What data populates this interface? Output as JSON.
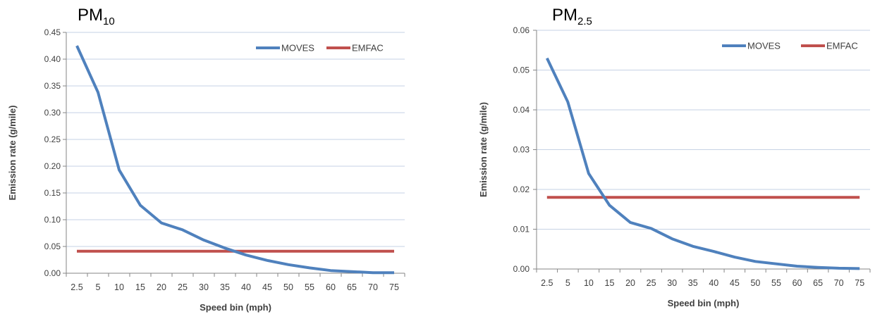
{
  "colors": {
    "moves": "#4F81BD",
    "emfac": "#C0504D",
    "grid": "#C6D2E4",
    "axis": "#868686"
  },
  "chart_data": [
    {
      "type": "line",
      "title": {
        "main": "PM",
        "subscript": "10"
      },
      "xlabel": "Speed bin (mph)",
      "ylabel": "Emission rate (g/mile)",
      "categories": [
        "2.5",
        "5",
        "10",
        "15",
        "20",
        "25",
        "30",
        "35",
        "40",
        "45",
        "50",
        "55",
        "60",
        "65",
        "70",
        "75"
      ],
      "ylim": [
        0,
        0.45
      ],
      "yticks": [
        "0.00",
        "0.05",
        "0.10",
        "0.15",
        "0.20",
        "0.25",
        "0.30",
        "0.35",
        "0.40",
        "0.45"
      ],
      "grid": true,
      "legend_position": "top-right",
      "series": [
        {
          "name": "MOVES",
          "values": [
            0.425,
            0.338,
            0.193,
            0.127,
            0.094,
            0.081,
            0.062,
            0.047,
            0.034,
            0.024,
            0.016,
            0.01,
            0.005,
            0.003,
            0.001,
            0.001
          ]
        },
        {
          "name": "EMFAC",
          "values": [
            0.041,
            0.041,
            0.041,
            0.041,
            0.041,
            0.041,
            0.041,
            0.041,
            0.041,
            0.041,
            0.041,
            0.041,
            0.041,
            0.041,
            0.041,
            0.041
          ]
        }
      ]
    },
    {
      "type": "line",
      "title": {
        "main": "PM",
        "subscript": "2.5"
      },
      "xlabel": "Speed bin (mph)",
      "ylabel": "Emission rate (g/mile)",
      "categories": [
        "2.5",
        "5",
        "10",
        "15",
        "20",
        "25",
        "30",
        "35",
        "40",
        "45",
        "50",
        "55",
        "60",
        "65",
        "70",
        "75"
      ],
      "ylim": [
        0,
        0.06
      ],
      "yticks": [
        "0.00",
        "0.01",
        "0.02",
        "0.03",
        "0.04",
        "0.05",
        "0.06"
      ],
      "grid": true,
      "legend_position": "top-right",
      "series": [
        {
          "name": "MOVES",
          "values": [
            0.053,
            0.042,
            0.024,
            0.016,
            0.0117,
            0.0102,
            0.0076,
            0.0057,
            0.0044,
            0.003,
            0.0019,
            0.0013,
            0.0007,
            0.0004,
            0.0002,
            0.0001
          ]
        },
        {
          "name": "EMFAC",
          "values": [
            0.018,
            0.018,
            0.018,
            0.018,
            0.018,
            0.018,
            0.018,
            0.018,
            0.018,
            0.018,
            0.018,
            0.018,
            0.018,
            0.018,
            0.018,
            0.018
          ]
        }
      ]
    }
  ]
}
